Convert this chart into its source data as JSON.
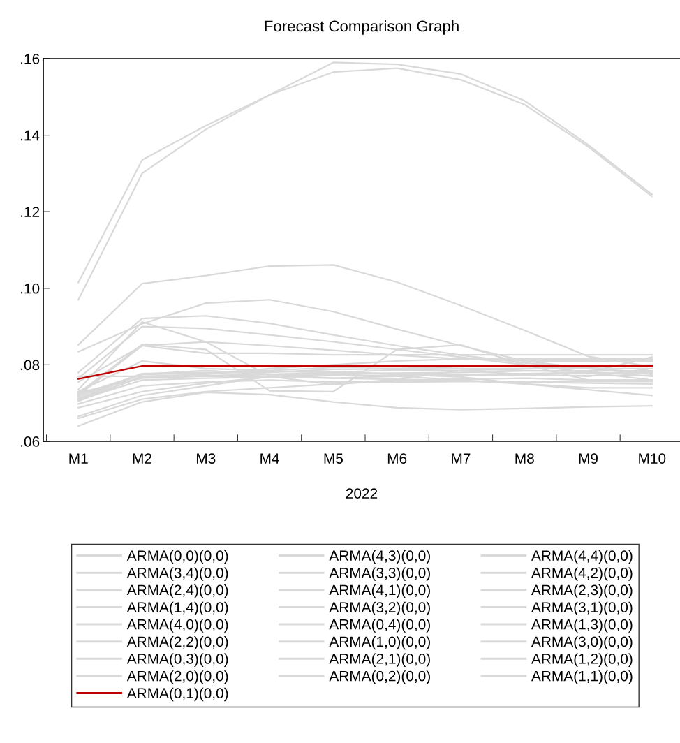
{
  "chart_data": {
    "type": "line",
    "title": "Forecast Comparison Graph",
    "xlabel": "2022",
    "categories": [
      "M1",
      "M2",
      "M3",
      "M4",
      "M5",
      "M6",
      "M7",
      "M8",
      "M9",
      "M10"
    ],
    "ylim": [
      0.06,
      0.16
    ],
    "yticks": [
      {
        "value": 0.06,
        "label": ".06"
      },
      {
        "value": 0.08,
        "label": ".08"
      },
      {
        "value": 0.1,
        "label": ".10"
      },
      {
        "value": 0.12,
        "label": ".12"
      },
      {
        "value": 0.14,
        "label": ".14"
      },
      {
        "value": 0.16,
        "label": ".16"
      }
    ],
    "grid": false,
    "legend": "bottom",
    "marker": "none",
    "line_style": "solid",
    "series": [
      {
        "name": "ARMA(0,0)(0,0)",
        "color": "#d9d9d9",
        "values": [
          0.0834,
          0.0907,
          0.0961,
          0.097,
          0.0939,
          0.0893,
          0.085,
          0.081,
          0.079,
          0.078
        ]
      },
      {
        "name": "ARMA(3,4)(0,0)",
        "color": "#d9d9d9",
        "values": [
          0.0852,
          0.1012,
          0.1033,
          0.1058,
          0.1061,
          0.1016,
          0.0955,
          0.089,
          0.0822,
          0.0795
        ]
      },
      {
        "name": "ARMA(2,4)(0,0)",
        "color": "#d9d9d9",
        "values": [
          0.0755,
          0.085,
          0.086,
          0.085,
          0.0838,
          0.0825,
          0.0815,
          0.081,
          0.081,
          0.081
        ]
      },
      {
        "name": "ARMA(1,4)(0,0)",
        "color": "#d9d9d9",
        "values": [
          0.072,
          0.085,
          0.083,
          0.083,
          0.0826,
          0.0826,
          0.0826,
          0.0826,
          0.0826,
          0.0826
        ]
      },
      {
        "name": "ARMA(4,0)(0,0)",
        "color": "#d9d9d9",
        "values": [
          0.0712,
          0.0775,
          0.0778,
          0.0783,
          0.078,
          0.0777,
          0.0772,
          0.0776,
          0.078,
          0.082
        ]
      },
      {
        "name": "ARMA(2,2)(0,0)",
        "color": "#d9d9d9",
        "values": [
          0.0722,
          0.0775,
          0.0785,
          0.0775,
          0.0765,
          0.077,
          0.0775,
          0.0777,
          0.0778,
          0.0778
        ]
      },
      {
        "name": "ARMA(0,3)(0,0)",
        "color": "#d9d9d9",
        "values": [
          0.0698,
          0.0745,
          0.0755,
          0.076,
          0.0755,
          0.0755,
          0.0756,
          0.0756,
          0.0756,
          0.0756
        ]
      },
      {
        "name": "ARMA(2,0)(0,0)",
        "color": "#d9d9d9",
        "values": [
          0.066,
          0.071,
          0.073,
          0.074,
          0.075,
          0.076,
          0.0762,
          0.0765,
          0.076,
          0.076
        ]
      },
      {
        "name": "ARMA(0,1)(0,0)",
        "color": "#c00000",
        "values": [
          0.0763,
          0.0797,
          0.0797,
          0.0797,
          0.0797,
          0.0797,
          0.0797,
          0.0797,
          0.0797,
          0.0797
        ]
      },
      {
        "name": "ARMA(4,3)(0,0)",
        "color": "#d9d9d9",
        "values": [
          0.1015,
          0.1335,
          0.1425,
          0.1505,
          0.159,
          0.1585,
          0.156,
          0.149,
          0.1375,
          0.1245
        ]
      },
      {
        "name": "ARMA(3,3)(0,0)",
        "color": "#d9d9d9",
        "values": [
          0.078,
          0.0921,
          0.0928,
          0.0908,
          0.0878,
          0.085,
          0.0825,
          0.0805,
          0.079,
          0.0775
        ]
      },
      {
        "name": "ARMA(4,1)(0,0)",
        "color": "#d9d9d9",
        "values": [
          0.0735,
          0.0912,
          0.086,
          0.077,
          0.0748,
          0.0762,
          0.0785,
          0.079,
          0.0793,
          0.08
        ]
      },
      {
        "name": "ARMA(3,2)(0,0)",
        "color": "#d9d9d9",
        "values": [
          0.073,
          0.081,
          0.079,
          0.0785,
          0.0793,
          0.0795,
          0.079,
          0.0785,
          0.0782,
          0.077
        ]
      },
      {
        "name": "ARMA(0,4)(0,0)",
        "color": "#d9d9d9",
        "values": [
          0.0705,
          0.077,
          0.0775,
          0.079,
          0.08,
          0.081,
          0.0815,
          0.0815,
          0.0815,
          0.0815
        ]
      },
      {
        "name": "ARMA(1,0)(0,0)",
        "color": "#d9d9d9",
        "values": [
          0.077,
          0.077,
          0.077,
          0.077,
          0.0772,
          0.0772,
          0.0772,
          0.0772,
          0.0772,
          0.0772
        ]
      },
      {
        "name": "ARMA(2,1)(0,0)",
        "color": "#d9d9d9",
        "values": [
          0.0688,
          0.073,
          0.0752,
          0.0768,
          0.0775,
          0.077,
          0.076,
          0.075,
          0.074,
          0.074
        ]
      },
      {
        "name": "ARMA(0,2)(0,0)",
        "color": "#d9d9d9",
        "values": [
          0.064,
          0.0703,
          0.0728,
          0.0722,
          0.0703,
          0.0688,
          0.0683,
          0.0686,
          0.069,
          0.0693
        ]
      },
      {
        "name": "ARMA(4,4)(0,0)",
        "color": "#d9d9d9",
        "values": [
          0.097,
          0.13,
          0.1415,
          0.1505,
          0.1565,
          0.1575,
          0.1545,
          0.148,
          0.137,
          0.124
        ]
      },
      {
        "name": "ARMA(4,2)(0,0)",
        "color": "#d9d9d9",
        "values": [
          0.0765,
          0.09,
          0.0895,
          0.0878,
          0.086,
          0.084,
          0.082,
          0.08,
          0.078,
          0.076
        ]
      },
      {
        "name": "ARMA(2,3)(0,0)",
        "color": "#d9d9d9",
        "values": [
          0.0725,
          0.0853,
          0.084,
          0.0732,
          0.073,
          0.084,
          0.0852,
          0.08,
          0.076,
          0.076
        ]
      },
      {
        "name": "ARMA(3,1)(0,0)",
        "color": "#d9d9d9",
        "values": [
          0.0717,
          0.0777,
          0.078,
          0.078,
          0.0788,
          0.079,
          0.079,
          0.079,
          0.079,
          0.079
        ]
      },
      {
        "name": "ARMA(1,3)(0,0)",
        "color": "#d9d9d9",
        "values": [
          0.071,
          0.0768,
          0.0772,
          0.0775,
          0.078,
          0.0787,
          0.0785,
          0.0775,
          0.077,
          0.079
        ]
      },
      {
        "name": "ARMA(3,0)(0,0)",
        "color": "#d9d9d9",
        "values": [
          0.0708,
          0.076,
          0.0765,
          0.0768,
          0.0765,
          0.0762,
          0.0758,
          0.0755,
          0.0752,
          0.075
        ]
      },
      {
        "name": "ARMA(1,2)(0,0)",
        "color": "#d9d9d9",
        "values": [
          0.0665,
          0.072,
          0.0745,
          0.077,
          0.078,
          0.0775,
          0.0768,
          0.075,
          0.0735,
          0.072
        ]
      },
      {
        "name": "ARMA(1,1)(0,0)",
        "color": "#d9d9d9",
        "values": [
          0.0727,
          0.0765,
          0.077,
          0.0775,
          0.0776,
          0.0778,
          0.078,
          0.0784,
          0.0784,
          0.0784
        ]
      }
    ]
  }
}
